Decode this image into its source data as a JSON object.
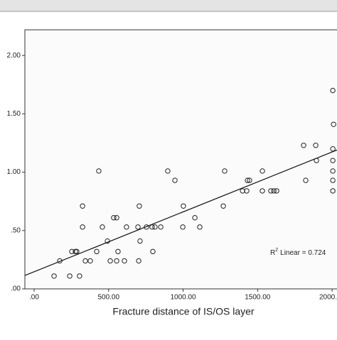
{
  "chart_data": {
    "type": "scatter",
    "x_label": "Fracture distance of IS/OS layer",
    "annotation": {
      "r": "R",
      "sup": "2",
      "text": "Linear = 0.724"
    },
    "xlim": [
      -62,
      2033
    ],
    "ylim": [
      0,
      2.22
    ],
    "xticks": [
      {
        "value": 0,
        "label": ".00"
      },
      {
        "value": 500,
        "label": "500.00"
      },
      {
        "value": 1000,
        "label": "1000.00"
      },
      {
        "value": 1500,
        "label": "1500.00"
      },
      {
        "value": 2000,
        "label": "2000.00"
      }
    ],
    "yticks": [
      {
        "value": 0,
        "label": ".00"
      },
      {
        "value": 0.5,
        "label": ".50"
      },
      {
        "value": 1,
        "label": "1.00"
      },
      {
        "value": 1.5,
        "label": "1.50"
      },
      {
        "value": 2,
        "label": "2.00"
      }
    ],
    "fit": {
      "x": [
        -62,
        2033
      ],
      "y": [
        0.115,
        1.19
      ]
    },
    "color": "#222222",
    "x": [
      134,
      172,
      239,
      253,
      277,
      286,
      305,
      325,
      325,
      344,
      377,
      420,
      434,
      458,
      492,
      511,
      534,
      554,
      554,
      563,
      606,
      620,
      697,
      702,
      706,
      711,
      754,
      792,
      797,
      811,
      850,
      897,
      945,
      998,
      1002,
      1079,
      1112,
      1270,
      1279,
      1399,
      1427,
      1432,
      1446,
      1532,
      1532,
      1589,
      1609,
      1628,
      1809,
      1823,
      1890,
      1895,
      2005,
      2010,
      2005,
      2005,
      2005,
      2005,
      2005
    ],
    "values": [
      0.11,
      0.24,
      0.11,
      0.32,
      0.32,
      0.32,
      0.11,
      0.71,
      0.53,
      0.24,
      0.24,
      0.32,
      1.01,
      0.53,
      0.41,
      0.24,
      0.61,
      0.61,
      0.24,
      0.32,
      0.24,
      0.53,
      0.53,
      0.24,
      0.71,
      0.41,
      0.53,
      0.53,
      0.32,
      0.53,
      0.53,
      1.01,
      0.93,
      0.53,
      0.71,
      0.61,
      0.53,
      0.71,
      1.01,
      0.84,
      0.84,
      0.93,
      0.93,
      1.01,
      0.84,
      0.84,
      0.84,
      0.84,
      1.23,
      0.93,
      1.23,
      1.1,
      1.7,
      1.41,
      1.2,
      1.1,
      1.01,
      0.93,
      0.84
    ]
  }
}
